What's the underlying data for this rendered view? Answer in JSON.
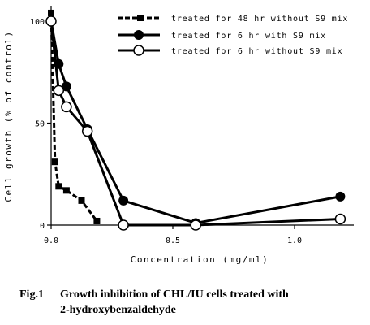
{
  "chart_data": {
    "type": "line",
    "xlabel": "Concentration (mg/ml)",
    "ylabel": "Cell growth (% of control)",
    "xlim": [
      0,
      1.25
    ],
    "ylim": [
      0,
      105
    ],
    "x_ticks": [
      0.0,
      0.5,
      1.0
    ],
    "x_tick_labels": [
      "0.0",
      "0.5",
      "1.0"
    ],
    "y_ticks": [
      0,
      50,
      100
    ],
    "y_tick_labels": [
      "0",
      "50",
      "100"
    ],
    "grid": false,
    "legend_position": "top-right",
    "series": [
      {
        "name": "treated for 48 hr without S9 mix",
        "style": "dashed",
        "marker": "filled-square",
        "x": [
          0.0,
          0.016,
          0.031,
          0.063,
          0.125,
          0.188
        ],
        "y": [
          104,
          31,
          19,
          17,
          12,
          2
        ]
      },
      {
        "name": "treated for 6 hr with S9 mix",
        "style": "solid",
        "marker": "filled-circle",
        "x": [
          0.0,
          0.031,
          0.063,
          0.149,
          0.297,
          0.594,
          1.188
        ],
        "y": [
          100,
          79,
          68,
          47,
          12,
          1,
          14
        ]
      },
      {
        "name": "treated for 6 hr without S9 mix",
        "style": "solid",
        "marker": "open-circle",
        "x": [
          0.0,
          0.031,
          0.063,
          0.149,
          0.297,
          0.594,
          1.188
        ],
        "y": [
          100,
          66,
          58,
          46,
          0,
          0,
          3
        ]
      }
    ]
  },
  "caption": {
    "number": "Fig.1",
    "line1": "Growth inhibition of CHL/IU cells treated with",
    "line2": "2-hydroxybenzaldehyde"
  }
}
